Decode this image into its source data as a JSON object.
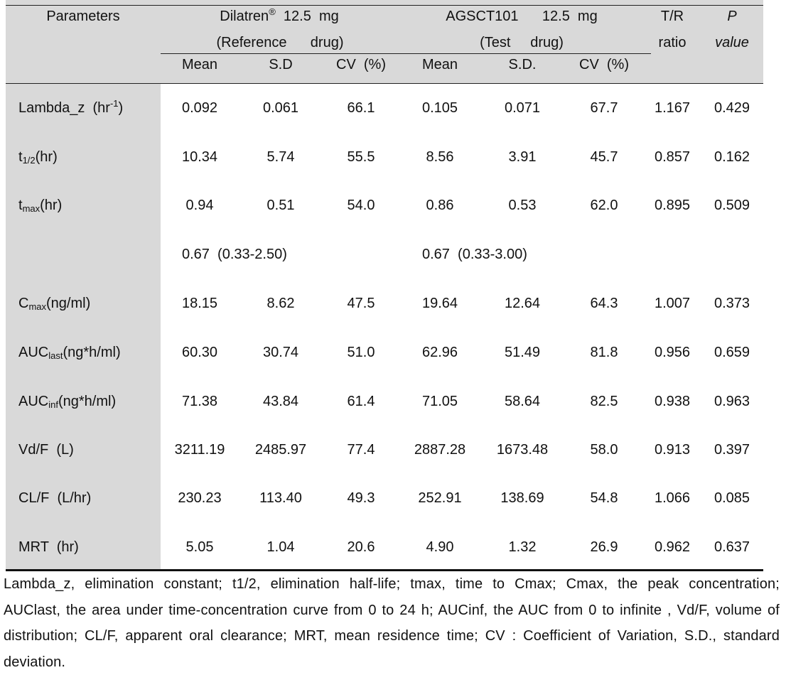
{
  "header": {
    "parameters": "Parameters",
    "ref_name": "Dilatren",
    "ref_sup": "®",
    "ref_dose": "12.5  mg",
    "ref_role": "(Reference      drug)",
    "test_name": "AGSCT101",
    "test_dose": "12.5  mg",
    "test_role": "(Test     drug)",
    "tr_line1": "T/R",
    "tr_line2": "ratio",
    "p_line1": "P",
    "p_line2": "value",
    "sub_ref": [
      "Mean",
      "S.D",
      "CV  (%)"
    ],
    "sub_test": [
      "Mean",
      "S.D.",
      "CV  (%)"
    ]
  },
  "rows": [
    {
      "label_main": "Lambda_z  (hr",
      "label_sup": "-1",
      "label_tail": ")",
      "label_sub": "",
      "values": [
        "0.092",
        "0.061",
        "66.1",
        "0.105",
        "0.071",
        "67.7",
        "1.167",
        "0.429"
      ]
    },
    {
      "label_main": "t",
      "label_sub": "1/2",
      "label_tail": "(hr)",
      "label_sup": "",
      "values": [
        "10.34",
        "5.74",
        "55.5",
        "8.56",
        "3.91",
        "45.7",
        "0.857",
        "0.162"
      ]
    },
    {
      "label_main": "t",
      "label_sub": "max",
      "label_tail": "(hr)",
      "label_sup": "",
      "values": [
        "0.94",
        "0.51",
        "54.0",
        "0.86",
        "0.53",
        "62.0",
        "0.895",
        "0.509"
      ]
    },
    {
      "label_main": "",
      "label_sub": "",
      "label_tail": "",
      "label_sup": "",
      "median_ref": "0.67  (0.33-2.50)",
      "median_test": "0.67  (0.33-3.00)"
    },
    {
      "label_main": "C",
      "label_sub": "max",
      "label_tail": "(ng/ml)",
      "label_sup": "",
      "values": [
        "18.15",
        "8.62",
        "47.5",
        "19.64",
        "12.64",
        "64.3",
        "1.007",
        "0.373"
      ]
    },
    {
      "label_main": "AUC",
      "label_sub": "last",
      "label_tail": "(ng*h/ml)",
      "label_sup": "",
      "values": [
        "60.30",
        "30.74",
        "51.0",
        "62.96",
        "51.49",
        "81.8",
        "0.956",
        "0.659"
      ]
    },
    {
      "label_main": "AUC",
      "label_sub": "inf",
      "label_tail": "(ng*h/ml)",
      "label_sup": "",
      "values": [
        "71.38",
        "43.84",
        "61.4",
        "71.05",
        "58.64",
        "82.5",
        "0.938",
        "0.963"
      ]
    },
    {
      "label_main": "Vd/F  (L)",
      "label_sub": "",
      "label_tail": "",
      "label_sup": "",
      "values": [
        "3211.19",
        "2485.97",
        "77.4",
        "2887.28",
        "1673.48",
        "58.0",
        "0.913",
        "0.397"
      ]
    },
    {
      "label_main": "CL/F  (L/hr)",
      "label_sub": "",
      "label_tail": "",
      "label_sup": "",
      "values": [
        "230.23",
        "113.40",
        "49.3",
        "252.91",
        "138.69",
        "54.8",
        "1.066",
        "0.085"
      ]
    },
    {
      "label_main": "MRT  (hr)",
      "label_sub": "",
      "label_tail": "",
      "label_sup": "",
      "values": [
        "5.05",
        "1.04",
        "20.6",
        "4.90",
        "1.32",
        "26.9",
        "0.962",
        "0.637"
      ]
    }
  ],
  "footnote": "Lambda_z, elimination constant; t1/2, elimination half-life; tmax, time to Cmax; Cmax, the peak concentration; AUClast, the area under time-concentration curve from 0 to 24 h; AUCinf, the AUC from 0 to infinite , Vd/F, volume of distribution; CL/F, apparent oral clearance; MRT, mean residence time; CV : Coefficient of Variation, S.D., standard deviation."
}
